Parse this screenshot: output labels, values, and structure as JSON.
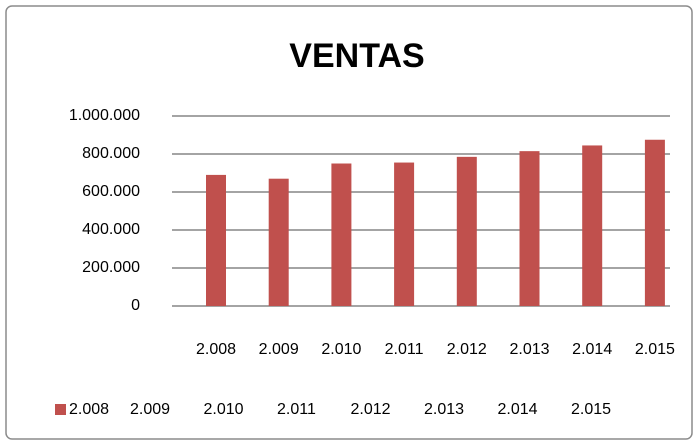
{
  "chart_data": {
    "type": "bar",
    "title": "VENTAS",
    "categories": [
      "2.008",
      "2.009",
      "2.010",
      "2.011",
      "2.012",
      "2.013",
      "2.014",
      "2.015"
    ],
    "series": [
      {
        "name": "2.008",
        "color": "#c0504d",
        "values": [
          690000,
          670000,
          750000,
          755000,
          785000,
          815000,
          845000,
          875000
        ]
      }
    ],
    "legend_entries": [
      "2.009",
      "2.010",
      "2.011",
      "2.012",
      "2.013",
      "2.014",
      "2.015"
    ],
    "ylim": [
      0,
      1000000
    ],
    "yticks": [
      0,
      {
        "value": 200000,
        "label": "200.000"
      },
      {
        "value": 400000,
        "label": "400.000"
      },
      {
        "value": 600000,
        "label": "600.000"
      },
      {
        "value": 800000,
        "label": "800.000"
      },
      {
        "value": 1000000,
        "label": "1.000.000"
      }
    ],
    "grid": true,
    "legend": "bottom"
  }
}
